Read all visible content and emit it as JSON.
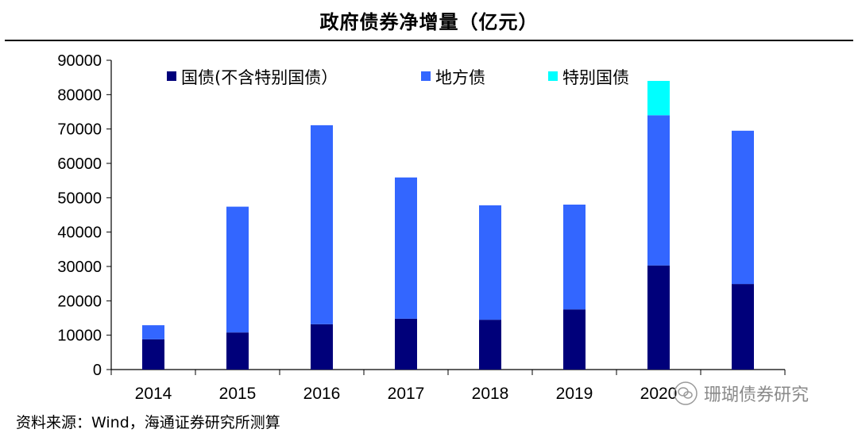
{
  "title": "政府债券净增量（亿元）",
  "source": "资料来源：Wind，海通证券研究所测算",
  "watermark": "珊瑚债券研究",
  "colors": {
    "treasury": "#00007a",
    "local": "#3366ff",
    "special": "#00ffff",
    "axis": "#000000"
  },
  "chart_data": {
    "type": "bar",
    "stacked": true,
    "categories": [
      "2014",
      "2015",
      "2016",
      "2017",
      "2018",
      "2019",
      "2020"
    ],
    "series": [
      {
        "name": "国债(不含特别国债）",
        "values": [
          8800,
          10800,
          13200,
          14800,
          14500,
          17500,
          30300
        ],
        "color_key": "treasury"
      },
      {
        "name": "地方债",
        "values": [
          4100,
          36600,
          57900,
          41100,
          33300,
          30500,
          43700
        ],
        "color_key": "local"
      },
      {
        "name": "特别国债",
        "values": [
          0,
          0,
          0,
          0,
          0,
          0,
          10000
        ],
        "color_key": "special"
      }
    ],
    "extra_bar": {
      "treasury": 24900,
      "local": 44600
    },
    "yticks": [
      0,
      10000,
      20000,
      30000,
      40000,
      50000,
      60000,
      70000,
      80000,
      90000
    ],
    "ylim": [
      0,
      90000
    ],
    "legend_placement": "top",
    "grid": false
  }
}
